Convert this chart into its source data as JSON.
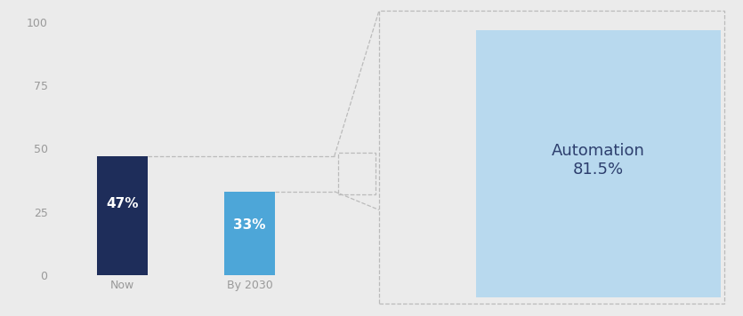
{
  "bar_categories": [
    "Now",
    "By 2030"
  ],
  "bar_values": [
    47,
    33
  ],
  "bar_colors": [
    "#1e2d5a",
    "#4da6d8"
  ],
  "bar_labels": [
    "47%",
    "33%"
  ],
  "ylim": [
    0,
    100
  ],
  "yticks": [
    0,
    25,
    50,
    75,
    100
  ],
  "bg_color": "#ebebeb",
  "dashed_line_color": "#bbbbbb",
  "automation_label": "Automation",
  "automation_value": "81.5%",
  "automation_color": "#b8d9ee",
  "automation_text_color": "#2d3f6e",
  "label_fontsize": 11,
  "tick_fontsize": 9,
  "annotation_fontsize": 13
}
